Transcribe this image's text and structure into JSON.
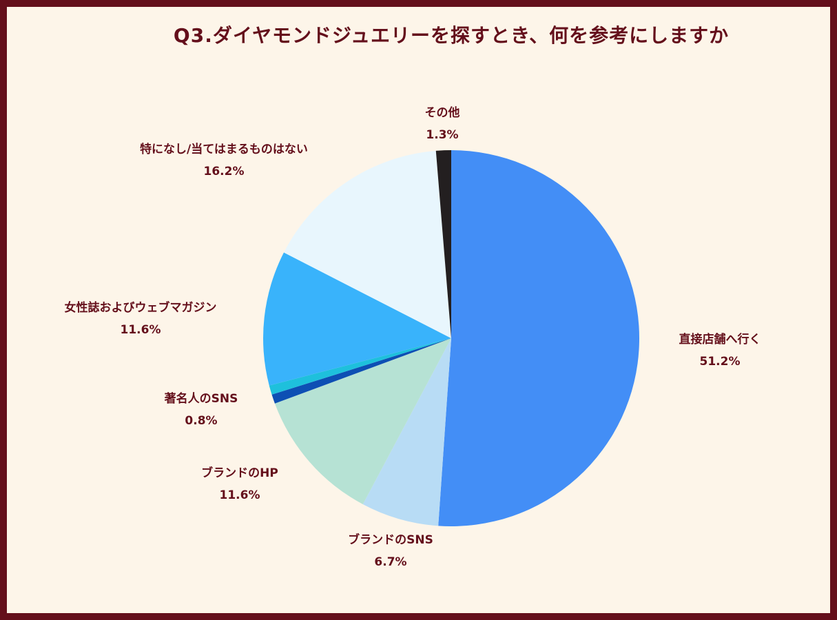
{
  "chart_data": {
    "type": "pie",
    "title": "Q3.ダイヤモンドジュエリーを探すとき、何を参考にしますか",
    "unit": "%",
    "slices": [
      {
        "label": "直接店舗へ行く",
        "value": 51.2,
        "value_label": "51.2%",
        "color": "#438ef6"
      },
      {
        "label": "ブランドのSNS",
        "value": 6.7,
        "value_label": "6.7%",
        "color": "#b8dcf5"
      },
      {
        "label": "ブランドのHP",
        "value": 11.6,
        "value_label": "11.6%",
        "color": "#b6e2d4"
      },
      {
        "label": "著名人のSNS",
        "value": 0.8,
        "value_label": "0.8%",
        "color": "#0d4fb4"
      },
      {
        "label": "",
        "value": 0.8,
        "value_label": "",
        "color": "#1ec0dc"
      },
      {
        "label": "女性誌およびウェブマガジン",
        "value": 11.6,
        "value_label": "11.6%",
        "color": "#39b3fb"
      },
      {
        "label": "特になし/当てはまるものはない",
        "value": 16.2,
        "value_label": "16.2%",
        "color": "#e8f6fd"
      },
      {
        "label": "その他",
        "value": 1.3,
        "value_label": "1.3%",
        "color": "#231f20"
      }
    ],
    "start": "12 o'clock",
    "direction": "clockwise",
    "legend": "none"
  }
}
